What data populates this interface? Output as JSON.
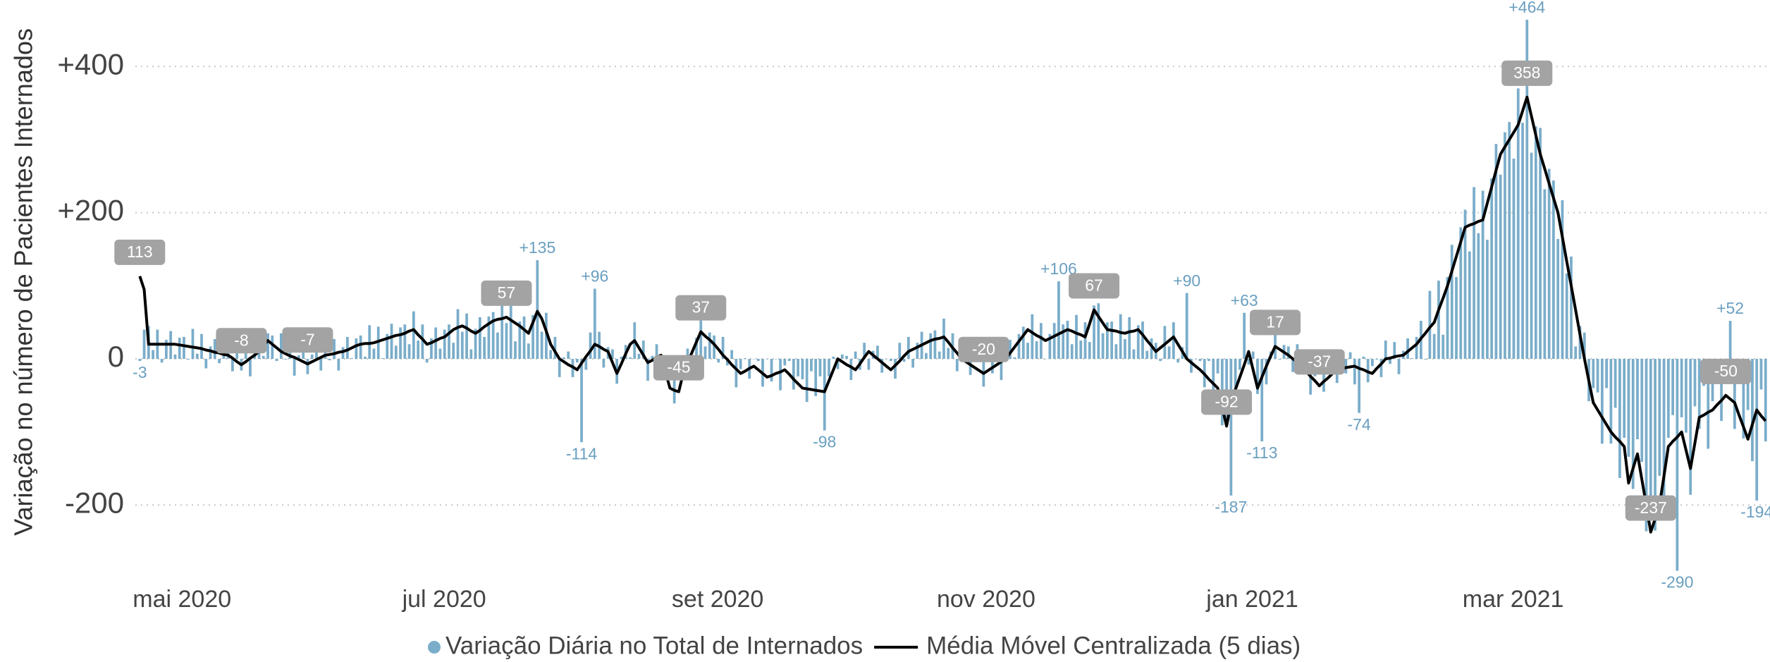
{
  "chart_data": {
    "type": "combo",
    "y_axis_label": "Variação no número de Pacientes Internados",
    "xlim": [
      -1,
      369
    ],
    "xticks": [
      {
        "value": 0,
        "label": "mai 2020"
      },
      {
        "value": 61,
        "label": "jul 2020"
      },
      {
        "value": 122,
        "label": "set 2020"
      },
      {
        "value": 182,
        "label": "nov 2020"
      },
      {
        "value": 243,
        "label": "jan 2021"
      },
      {
        "value": 301,
        "label": "mar 2021"
      }
    ],
    "ylim": [
      -300,
      490
    ],
    "yticks": [
      {
        "value": 400,
        "label": "+400"
      },
      {
        "value": 200,
        "label": "+200"
      },
      0,
      -200
    ],
    "grid": true,
    "legend": "bottom",
    "x": [
      0,
      1,
      2,
      3,
      4,
      5,
      6,
      7,
      8,
      9,
      10,
      11,
      12,
      13,
      14,
      15,
      16,
      17,
      18,
      19,
      20,
      21,
      22,
      23,
      24,
      25,
      26,
      27,
      28,
      29,
      30,
      31,
      32,
      33,
      34,
      35,
      36,
      37,
      38,
      39,
      40,
      41,
      42,
      43,
      44,
      45,
      46,
      47,
      48,
      49,
      50,
      51,
      52,
      53,
      54,
      55,
      56,
      57,
      58,
      59,
      60,
      61,
      62,
      63,
      64,
      65,
      66,
      67,
      68,
      69,
      70,
      71,
      72,
      73,
      74,
      75,
      76,
      77,
      78,
      79,
      80,
      81,
      82,
      83,
      84,
      85,
      86,
      87,
      88,
      89,
      90,
      91,
      92,
      93,
      94,
      95,
      96,
      97,
      98,
      99,
      100,
      101,
      102,
      103,
      104,
      105,
      106,
      107,
      108,
      109,
      110,
      111,
      112,
      113,
      114,
      115,
      116,
      117,
      118,
      119,
      120,
      121,
      122,
      123,
      124,
      125,
      126,
      127,
      128,
      129,
      130,
      131,
      132,
      133,
      134,
      135,
      136,
      137,
      138,
      139,
      140,
      141,
      142,
      143,
      144,
      145,
      146,
      147,
      148,
      149,
      150,
      151,
      152,
      153,
      154,
      155,
      156,
      157,
      158,
      159,
      160,
      161,
      162,
      163,
      164,
      165,
      166,
      167,
      168,
      169,
      170,
      171,
      172,
      173,
      174,
      175,
      176,
      177,
      178,
      179,
      180,
      181,
      182,
      183,
      184,
      185,
      186,
      187,
      188,
      189,
      190,
      191,
      192,
      193,
      194,
      195,
      196,
      197,
      198,
      199,
      200,
      201,
      202,
      203,
      204,
      205,
      206,
      207,
      208,
      209,
      210,
      211,
      212,
      213,
      214,
      215,
      216,
      217,
      218,
      219,
      220,
      221,
      222,
      223,
      224,
      225,
      226,
      227,
      228,
      229,
      230,
      231,
      232,
      233,
      234,
      235,
      236,
      237,
      238,
      239,
      240,
      241,
      242,
      243,
      244,
      245,
      246,
      247,
      248,
      249,
      250,
      251,
      252,
      253,
      254,
      255,
      256,
      257,
      258,
      259,
      260,
      261,
      262,
      263,
      264,
      265,
      266,
      267,
      268,
      269,
      270,
      271,
      272,
      273,
      274,
      275,
      276,
      277,
      278,
      279,
      280,
      281,
      282,
      283,
      284,
      285,
      286,
      287,
      288,
      289,
      290,
      291,
      292,
      293,
      294,
      295,
      296,
      297,
      298,
      299,
      300,
      301,
      302,
      303,
      304,
      305,
      306,
      307,
      308,
      309,
      310,
      311,
      312,
      313,
      314,
      315,
      316,
      317,
      318,
      319,
      320,
      321,
      322,
      323,
      324,
      325,
      326,
      327,
      328,
      329,
      330,
      331,
      332,
      333,
      334,
      335,
      336,
      337,
      338,
      339,
      340,
      341,
      342,
      343,
      344,
      345,
      346,
      347,
      348,
      349,
      350,
      351,
      352,
      353,
      354,
      355,
      356,
      357,
      358,
      359,
      360,
      361,
      362,
      363,
      364,
      365,
      366,
      367,
      368
    ],
    "series": [
      {
        "name": "Variação Diária no Total de Internados",
        "type": "bar",
        "color": "#7aadca",
        "label_color": "#6a9fc0",
        "values": [
          -3,
          40,
          45,
          12,
          40,
          -5,
          26,
          38,
          6,
          29,
          30,
          -1,
          41,
          7,
          34,
          -13,
          17,
          27,
          -6,
          16,
          17,
          -17,
          21,
          -16,
          16,
          -24,
          11,
          28,
          4,
          35,
          32,
          -3,
          35,
          -1,
          24,
          -23,
          5,
          14,
          -21,
          6,
          11,
          -16,
          30,
          -2,
          27,
          -16,
          16,
          30,
          1,
          28,
          32,
          3,
          46,
          14,
          44,
          1,
          34,
          48,
          18,
          43,
          47,
          20,
          65,
          25,
          47,
          -5,
          28,
          43,
          14,
          40,
          47,
          22,
          68,
          37,
          62,
          13,
          41,
          57,
          30,
          58,
          64,
          36,
          80,
          49,
          73,
          24,
          51,
          58,
          21,
          60,
          135,
          37,
          63,
          12,
          30,
          -25,
          2,
          10,
          -25,
          -5,
          -114,
          -15,
          36,
          96,
          37,
          -12,
          16,
          13,
          -34,
          3,
          19,
          2,
          50,
          7,
          25,
          -30,
          4,
          20,
          -9,
          -8,
          -28,
          -61,
          -20,
          -28,
          14,
          -16,
          29,
          55,
          17,
          36,
          32,
          -5,
          30,
          -9,
          12,
          -39,
          -14,
          1,
          -27,
          0,
          -3,
          -38,
          0,
          -31,
          0,
          -43,
          -9,
          -3,
          -42,
          -24,
          -28,
          -59,
          -17,
          -51,
          -24,
          -98,
          -24,
          3,
          -14,
          6,
          4,
          -29,
          10,
          -15,
          22,
          -15,
          11,
          18,
          -19,
          0,
          -3,
          -27,
          22,
          -4,
          30,
          -12,
          22,
          37,
          8,
          35,
          39,
          10,
          55,
          15,
          35,
          -17,
          6,
          14,
          -22,
          -2,
          -4,
          -38,
          9,
          -20,
          12,
          -29,
          6,
          26,
          2,
          34,
          44,
          22,
          61,
          24,
          49,
          0,
          34,
          49,
          106,
          47,
          52,
          20,
          60,
          25,
          50,
          23,
          73,
          76,
          35,
          50,
          51,
          20,
          61,
          27,
          57,
          13,
          46,
          51,
          11,
          28,
          22,
          -3,
          45,
          17,
          50,
          -5,
          16,
          90,
          -19,
          0,
          -3,
          -39,
          -3,
          -42,
          -20,
          -91,
          -86,
          -187,
          -56,
          -15,
          63,
          -8,
          10,
          -48,
          -113,
          -35,
          10,
          35,
          -1,
          19,
          17,
          -18,
          20,
          -18,
          3,
          -49,
          -24,
          -19,
          -45,
          -16,
          -8,
          -33,
          11,
          -20,
          9,
          -35,
          -74,
          3,
          -32,
          -10,
          -1,
          -25,
          25,
          -7,
          23,
          -21,
          11,
          28,
          1,
          30,
          52,
          -1,
          93,
          34,
          107,
          33,
          112,
          156,
          112,
          180,
          204,
          147,
          235,
          172,
          230,
          163,
          247,
          294,
          252,
          310,
          324,
          274,
          370,
          323,
          464,
          282,
          318,
          316,
          232,
          260,
          244,
          164,
          217,
          117,
          140,
          17,
          45,
          36,
          -58,
          -40,
          -46,
          -116,
          -40,
          -116,
          -67,
          -163,
          -108,
          -134,
          -178,
          -110,
          -141,
          -236,
          -187,
          -235,
          -160,
          -210,
          -108,
          -77,
          -290,
          -80,
          -101,
          -186,
          -65,
          -96,
          -37,
          -123,
          -58,
          -27,
          -85,
          -30,
          52,
          -96,
          -27,
          -109,
          -70,
          -140,
          -194,
          -42,
          -113
        ],
        "value_labels": {
          "0": "-3",
          "90": "+135",
          "100": "-114",
          "103": "+96",
          "155": "-98",
          "208": "+106",
          "237": "+90",
          "247": "-187",
          "250": "+63",
          "254": "-113",
          "276": "-74",
          "314": "+464",
          "348": "-290",
          "360": "+52",
          "366": "-194"
        }
      },
      {
        "name": "Média Móvel Centralizada (5 dias)",
        "type": "line",
        "color": "#000000",
        "label_color": "#a3a3a3",
        "values": [
          113,
          95,
          20,
          20,
          20,
          20,
          20,
          20,
          20,
          19,
          18,
          17,
          16,
          15,
          14,
          12,
          11,
          9,
          8,
          6,
          5,
          1,
          -4,
          -8,
          -4,
          1,
          5,
          10,
          18,
          25,
          20,
          15,
          10,
          7,
          4,
          2,
          -1,
          -4,
          -7,
          -4,
          -1,
          2,
          5,
          6,
          7,
          9,
          10,
          12,
          15,
          18,
          20,
          21,
          21,
          22,
          24,
          26,
          28,
          30,
          32,
          33,
          35,
          38,
          40,
          33,
          27,
          20,
          22,
          25,
          28,
          30,
          35,
          40,
          43,
          45,
          42,
          38,
          35,
          39,
          44,
          48,
          52,
          54,
          55,
          57,
          53,
          49,
          45,
          40,
          35,
          50,
          65,
          55,
          38,
          20,
          10,
          0,
          -4,
          -8,
          -11,
          -15,
          -6,
          3,
          11,
          20,
          17,
          13,
          10,
          -5,
          -20,
          -7,
          7,
          20,
          25,
          15,
          5,
          -5,
          -2,
          2,
          5,
          -18,
          -40,
          -43,
          -45,
          -20,
          -6,
          9,
          23,
          37,
          31,
          26,
          20,
          13,
          5,
          -1,
          -8,
          -14,
          -20,
          -17,
          -13,
          -10,
          -15,
          -20,
          -25,
          -23,
          -20,
          -18,
          -15,
          -21,
          -28,
          -34,
          -40,
          -41,
          -42,
          -43,
          -44,
          -45,
          -30,
          -15,
          0,
          -4,
          -8,
          -11,
          -15,
          -7,
          2,
          10,
          5,
          0,
          -5,
          -10,
          -15,
          -9,
          -3,
          4,
          10,
          13,
          16,
          19,
          22,
          25,
          27,
          28,
          30,
          23,
          15,
          8,
          0,
          -4,
          -8,
          -12,
          -16,
          -20,
          -16,
          -12,
          -8,
          -4,
          0,
          8,
          16,
          24,
          32,
          40,
          36,
          32,
          29,
          25,
          28,
          31,
          34,
          37,
          40,
          38,
          35,
          33,
          30,
          48,
          67,
          58,
          49,
          40,
          39,
          38,
          36,
          35,
          37,
          38,
          40,
          33,
          25,
          18,
          10,
          15,
          20,
          25,
          30,
          20,
          10,
          0,
          -5,
          -10,
          -15,
          -21,
          -28,
          -34,
          -40,
          -66,
          -92,
          -60,
          -42,
          -25,
          -8,
          10,
          -15,
          -40,
          -25,
          -10,
          4,
          17,
          13,
          9,
          5,
          0,
          -5,
          -10,
          -17,
          -24,
          -30,
          -37,
          -31,
          -26,
          -20,
          -15,
          -14,
          -12,
          -11,
          -10,
          -13,
          -15,
          -18,
          -20,
          -13,
          -7,
          0,
          1,
          3,
          4,
          5,
          10,
          15,
          20,
          28,
          35,
          43,
          50,
          67,
          83,
          100,
          120,
          140,
          160,
          180,
          183,
          185,
          188,
          190,
          213,
          235,
          258,
          280,
          290,
          300,
          310,
          320,
          339,
          358,
          332,
          306,
          280,
          260,
          240,
          220,
          200,
          167,
          133,
          100,
          67,
          33,
          0,
          -30,
          -60,
          -70,
          -80,
          -90,
          -100,
          -107,
          -113,
          -120,
          -170,
          -150,
          -130,
          -165,
          -200,
          -237,
          -219,
          -200,
          -160,
          -120,
          -113,
          -107,
          -100,
          -125,
          -150,
          -115,
          -80,
          -77,
          -73,
          -70,
          -63,
          -57,
          -50,
          -55,
          -60,
          -77,
          -93,
          -110,
          -90,
          -70,
          -78,
          -85
        ],
        "value_labels": {
          "0": "113",
          "23": "-8",
          "38": "-7",
          "83": "57",
          "122": "-45",
          "127": "37",
          "191": "-20",
          "216": "67",
          "246": "-92",
          "257": "17",
          "267": "-37",
          "314": "358",
          "342": "-237",
          "359": "-50"
        }
      }
    ]
  }
}
